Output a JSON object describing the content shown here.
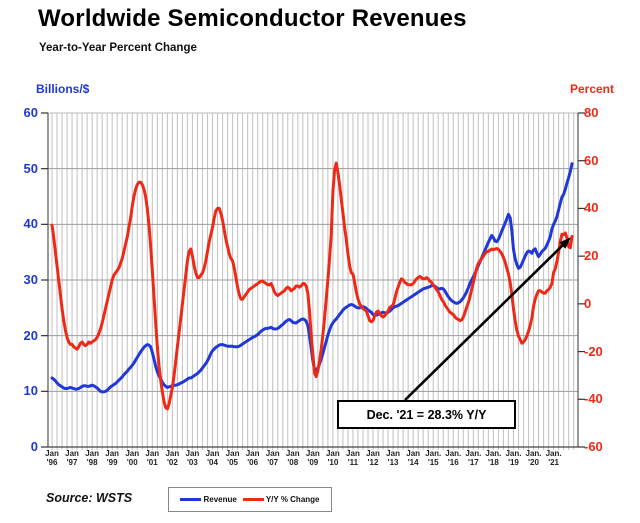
{
  "title": "Worldwide Semiconductor Revenues",
  "subtitle": "Year-to-Year Percent Change",
  "source": "Source: WSTS",
  "annotation": {
    "text": "Dec. '21 = 28.3% Y/Y"
  },
  "left_axis": {
    "unit_label": "Billions/$",
    "color": "#2038D8",
    "ticks": [
      60,
      50,
      40,
      30,
      20,
      10,
      0
    ]
  },
  "right_axis": {
    "unit_label": "Percent",
    "color": "#EE2A16",
    "ticks": [
      80,
      60,
      40,
      20,
      0,
      -20,
      -40,
      -60
    ]
  },
  "x_axis": {
    "labels": [
      {
        "line1": "Jan",
        "line2": "'96"
      },
      {
        "line1": "Jan",
        "line2": "'97"
      },
      {
        "line1": "Jan",
        "line2": "'98"
      },
      {
        "line1": "Jan",
        "line2": "'99"
      },
      {
        "line1": "Jan",
        "line2": "'00"
      },
      {
        "line1": "Jan",
        "line2": "'01"
      },
      {
        "line1": "Jan",
        "line2": "'02"
      },
      {
        "line1": "Jan",
        "line2": "'03"
      },
      {
        "line1": "Jan",
        "line2": "'04"
      },
      {
        "line1": "Jan",
        "line2": "'05"
      },
      {
        "line1": "Jan",
        "line2": "'06"
      },
      {
        "line1": "Jan",
        "line2": "'07"
      },
      {
        "line1": "Jan",
        "line2": "'08"
      },
      {
        "line1": "Jan",
        "line2": "'09"
      },
      {
        "line1": "Jan",
        "line2": "'10"
      },
      {
        "line1": "Jan",
        "line2": "'11"
      },
      {
        "line1": "Jan",
        "line2": "'12"
      },
      {
        "line1": "Jan",
        "line2": "'13"
      },
      {
        "line1": "Jan",
        "line2": "'14"
      },
      {
        "line1": "Jan.",
        "line2": "'15"
      },
      {
        "line1": "Jan.",
        "line2": "'16"
      },
      {
        "line1": "Jan.",
        "line2": "'17"
      },
      {
        "line1": "Jan.",
        "line2": "'18"
      },
      {
        "line1": "Jan.",
        "line2": "'19"
      },
      {
        "line1": "Jan.",
        "line2": "'20"
      },
      {
        "line1": "Jan.",
        "line2": "'21"
      }
    ]
  },
  "legend": [
    {
      "label": "Revenue",
      "color": "#2038D8"
    },
    {
      "label": "Y/Y % Change",
      "color": "#EE2A16"
    }
  ],
  "chart_data": {
    "type": "line",
    "title": "Worldwide Semiconductor Revenues",
    "subtitle": "Year-to-Year Percent Change",
    "x_start": "1996-01",
    "x_end": "2021-12",
    "x_step": "month",
    "left_ylim": [
      0,
      60
    ],
    "right_ylim": [
      -60,
      80
    ],
    "grid": {
      "vertical": "quarterly",
      "horizontal_left_step": 10
    },
    "legend_position": "bottom-center",
    "annotation": {
      "text": "Dec. '21 = 28.3% Y/Y",
      "points_to": "Dec 2021 Y/Y value 28.3%"
    },
    "series": [
      {
        "name": "Revenue",
        "axis": "left",
        "color": "#2038D8",
        "unit": "US$ billions per month",
        "values": [
          12.4,
          12.2,
          11.9,
          11.5,
          11.2,
          11.0,
          10.8,
          10.6,
          10.5,
          10.5,
          10.6,
          10.7,
          10.6,
          10.5,
          10.4,
          10.4,
          10.5,
          10.7,
          10.9,
          11.0,
          11.0,
          10.9,
          10.9,
          11.0,
          11.1,
          11.0,
          10.8,
          10.6,
          10.3,
          10.0,
          9.9,
          9.9,
          10.0,
          10.2,
          10.5,
          10.8,
          11.0,
          11.2,
          11.4,
          11.7,
          12.0,
          12.3,
          12.6,
          13.0,
          13.3,
          13.6,
          14.0,
          14.3,
          14.7,
          15.1,
          15.6,
          16.1,
          16.6,
          17.1,
          17.5,
          17.9,
          18.2,
          18.4,
          18.3,
          18.0,
          17.0,
          15.8,
          14.5,
          13.5,
          12.8,
          12.2,
          11.6,
          11.2,
          10.9,
          10.7,
          10.8,
          10.9,
          11.0,
          11.1,
          11.1,
          11.2,
          11.3,
          11.5,
          11.6,
          11.8,
          12.0,
          12.2,
          12.4,
          12.4,
          12.6,
          12.8,
          13.0,
          13.2,
          13.5,
          13.8,
          14.2,
          14.6,
          15.0,
          15.5,
          16.1,
          16.8,
          17.3,
          17.6,
          17.9,
          18.1,
          18.3,
          18.4,
          18.4,
          18.3,
          18.2,
          18.1,
          18.1,
          18.1,
          18.1,
          18.0,
          18.0,
          18.0,
          18.1,
          18.3,
          18.5,
          18.7,
          18.9,
          19.1,
          19.3,
          19.5,
          19.7,
          19.8,
          20.0,
          20.2,
          20.5,
          20.8,
          21.0,
          21.2,
          21.3,
          21.3,
          21.4,
          21.5,
          21.3,
          21.2,
          21.2,
          21.3,
          21.5,
          21.8,
          22.0,
          22.3,
          22.6,
          22.8,
          22.9,
          22.7,
          22.4,
          22.3,
          22.3,
          22.5,
          22.7,
          22.9,
          23.0,
          22.9,
          22.6,
          21.8,
          20.0,
          17.8,
          15.5,
          14.0,
          13.8,
          14.2,
          14.9,
          15.8,
          16.8,
          17.9,
          19.0,
          20.1,
          21.0,
          21.8,
          22.3,
          22.7,
          23.0,
          23.4,
          23.8,
          24.2,
          24.6,
          24.9,
          25.1,
          25.3,
          25.5,
          25.6,
          25.5,
          25.3,
          25.1,
          25.0,
          25.0,
          25.1,
          25.2,
          25.1,
          24.9,
          24.6,
          24.4,
          24.2,
          23.8,
          23.7,
          23.7,
          23.8,
          24.0,
          24.1,
          24.2,
          24.1,
          24.1,
          24.2,
          24.4,
          24.7,
          25.0,
          25.2,
          25.3,
          25.4,
          25.6,
          25.8,
          26.0,
          26.2,
          26.4,
          26.6,
          26.8,
          27.0,
          27.2,
          27.4,
          27.6,
          27.8,
          28.0,
          28.2,
          28.4,
          28.5,
          28.6,
          28.7,
          28.8,
          29.0,
          29.0,
          28.9,
          28.6,
          28.4,
          28.4,
          28.5,
          28.4,
          28.0,
          27.5,
          27.0,
          26.6,
          26.3,
          26.1,
          25.9,
          25.8,
          25.9,
          26.1,
          26.4,
          26.8,
          27.3,
          27.9,
          28.6,
          29.4,
          30.0,
          30.6,
          31.2,
          31.9,
          32.6,
          33.3,
          34.0,
          34.7,
          35.4,
          36.1,
          36.8,
          37.4,
          38.0,
          37.6,
          37.0,
          36.9,
          37.3,
          38.0,
          38.8,
          39.5,
          40.2,
          41.0,
          41.8,
          41.2,
          38.9,
          35.5,
          33.8,
          32.8,
          32.1,
          32.3,
          32.9,
          33.6,
          34.3,
          34.9,
          35.2,
          35.1,
          34.8,
          35.4,
          35.6,
          34.8,
          34.2,
          34.6,
          35.1,
          35.4,
          35.7,
          36.3,
          37.0,
          37.8,
          39.2,
          40.0,
          40.6,
          41.4,
          42.6,
          43.8,
          44.9,
          45.4,
          46.3,
          47.4,
          48.4,
          49.5,
          50.9
        ]
      },
      {
        "name": "Y/Y % Change",
        "axis": "right",
        "color": "#EE2A16",
        "unit": "percent",
        "values": [
          33,
          28,
          22,
          16,
          10,
          4,
          -2,
          -7,
          -11,
          -14,
          -16,
          -17,
          -17,
          -18,
          -18.5,
          -19,
          -18,
          -16.5,
          -16,
          -17,
          -17.5,
          -17,
          -16,
          -16.5,
          -16,
          -15.5,
          -15,
          -14,
          -12.5,
          -10.5,
          -8,
          -5,
          -2,
          1,
          4,
          7,
          10,
          12,
          13,
          14,
          15,
          17,
          19,
          22,
          25,
          28,
          32,
          36,
          41,
          45,
          48,
          50,
          51,
          51,
          50,
          48,
          45,
          40,
          33,
          24,
          14,
          3,
          -8,
          -18,
          -26,
          -32,
          -37,
          -41,
          -43.5,
          -44,
          -42,
          -38.5,
          -35,
          -30,
          -24,
          -18,
          -12,
          -6,
          0,
          6,
          12,
          18,
          22,
          23,
          20,
          16,
          13,
          11,
          11,
          12,
          13,
          15,
          18,
          22,
          26,
          29,
          32,
          36,
          39,
          40,
          40,
          38,
          35,
          31,
          27,
          24,
          21,
          19,
          18,
          15,
          11,
          7,
          4,
          2,
          2,
          3,
          4,
          5,
          6,
          6.5,
          7,
          7.5,
          8,
          8.5,
          9,
          9.5,
          9.5,
          9,
          8.5,
          8,
          8,
          8.5,
          7,
          5,
          4,
          3.5,
          4,
          4.5,
          5,
          5.5,
          6.5,
          7,
          6.5,
          5.5,
          6,
          6.5,
          7.5,
          7.5,
          7,
          7.5,
          8.5,
          8.5,
          7.5,
          4.5,
          -3,
          -13,
          -21,
          -29,
          -30.5,
          -28,
          -24,
          -19,
          -13,
          -6,
          2,
          10,
          19,
          29,
          47,
          56,
          59,
          55,
          50,
          44,
          38,
          32,
          27,
          21,
          16,
          13,
          12.5,
          9,
          5,
          2,
          0,
          -1,
          -2,
          -2.5,
          -3,
          -5,
          -7,
          -7.5,
          -7,
          -5,
          -3.5,
          -3,
          -4,
          -5,
          -5.5,
          -5,
          -4,
          -3,
          -1.5,
          -1,
          -0.5,
          2,
          5,
          7,
          9,
          10.5,
          10,
          9,
          8.5,
          8,
          8,
          8,
          8.5,
          9.5,
          10.5,
          11,
          11.5,
          11,
          10.5,
          10.5,
          11,
          10.5,
          9.5,
          9,
          8,
          7,
          6,
          5,
          3.5,
          2,
          1,
          -0.5,
          -1.5,
          -2.5,
          -3.5,
          -4,
          -4.5,
          -5.5,
          -6.2,
          -6.5,
          -7,
          -6.8,
          -5.5,
          -3.5,
          -1.5,
          0.5,
          3,
          6,
          9,
          12,
          15,
          17,
          18,
          19,
          20,
          21,
          22,
          22,
          22.5,
          23,
          22.7,
          23,
          23.2,
          22.8,
          22,
          21,
          19.5,
          17.5,
          15,
          12.5,
          9,
          4,
          -2,
          -7,
          -11,
          -13.5,
          -15,
          -16.5,
          -16,
          -15,
          -13.5,
          -11.5,
          -9,
          -6,
          -1,
          2,
          4,
          5.5,
          5.5,
          5,
          4.5,
          4.5,
          5.5,
          6,
          7,
          8.5,
          13.2,
          14.7,
          17.8,
          21.7,
          26.2,
          29.2,
          29,
          29.7,
          27.6,
          24,
          23.5,
          28.3
        ]
      }
    ]
  }
}
